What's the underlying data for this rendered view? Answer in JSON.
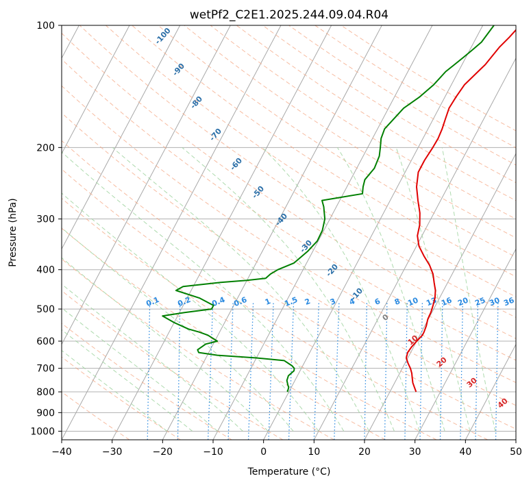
{
  "chart_data": {
    "type": "line",
    "title": "wetPf2_C2E1.2025.244.09.04.R04",
    "xlabel": "Temperature (°C)",
    "ylabel": "Pressure (hPa)",
    "xlim": [
      -40,
      50
    ],
    "ylim": [
      1050,
      100
    ],
    "y_scale": "log",
    "x_ticks": [
      -40,
      -30,
      -20,
      -10,
      0,
      10,
      20,
      30,
      40,
      50
    ],
    "y_ticks": [
      100,
      200,
      300,
      400,
      500,
      600,
      700,
      800,
      900,
      1000
    ],
    "grid": true,
    "background_isolines": {
      "isotherms": "gray solid",
      "dry_adiabats": "salmon dashed",
      "moist_adiabats": "green dashed",
      "mixing_ratio": "blue dotted"
    },
    "colors": {
      "temperature": "#e00000",
      "dewpoint": "#007f00",
      "isotherm": "#a8a8a8",
      "dry_adiabat": "#f4a582",
      "moist_adiabat": "#9fd39f",
      "mixing_ratio": "#2b8ae0",
      "label_blue": "#2b6fa8",
      "label_red": "#d62728",
      "label_gray": "#808080"
    },
    "series": [
      {
        "x": [
          25.2,
          24.4,
          23.6,
          23.0,
          22.4,
          21.6,
          20.6,
          19.7,
          19.4,
          19.6,
          20.0,
          20.5,
          20.5,
          20.3,
          19.9,
          19.8,
          19.5,
          19.1,
          18.4,
          17.3,
          16.2,
          14.6,
          12.5,
          10.5,
          9.1,
          8.4,
          7.2,
          5.5,
          3.8,
          2.6,
          2.6,
          2.9,
          3.0,
          2.8,
          2.4,
          2.0,
          2.2,
          2.6,
          3.9,
          4.6,
          5.0,
          5.6,
          6.5,
          7.4
        ],
        "y": [
          800,
          780,
          760,
          740,
          720,
          700,
          680,
          660,
          640,
          620,
          600,
          580,
          570,
          550,
          530,
          510,
          490,
          470,
          450,
          430,
          410,
          390,
          370,
          350,
          330,
          310,
          290,
          270,
          250,
          230,
          215,
          200,
          190,
          180,
          170,
          160,
          150,
          140,
          130,
          125,
          120,
          113,
          107,
          100
        ]
      },
      {
        "x": [
          -0.3,
          -0.5,
          -0.9,
          -1.6,
          -1.8,
          -1.2,
          -1.4,
          -2.1,
          -4.2,
          -10.0,
          -18.0,
          -22.0,
          -22.5,
          -21.5,
          -19.5,
          -22.0,
          -24.0,
          -26.5,
          -30.0,
          -33.0,
          -29.0,
          -24.0,
          -24.0,
          -27.5,
          -33.0,
          -32.0,
          -25.0,
          -20.0,
          -16.5,
          -16.0,
          -15.0,
          -12.5,
          -11.0,
          -10.2,
          -10.3,
          -11.0,
          -12.5,
          -13.5,
          -6.2,
          -6.8,
          -7.2,
          -6.5,
          -6.8,
          -7.5,
          -8.3,
          -8.6,
          -7.0,
          -5.0,
          -3.5,
          -2.5,
          -1.5,
          -0.5,
          0.5,
          1.5,
          2.2
        ],
        "y": [
          800,
          780,
          770,
          750,
          730,
          710,
          700,
          690,
          670,
          660,
          650,
          640,
          630,
          610,
          600,
          580,
          570,
          560,
          540,
          520,
          510,
          500,
          490,
          470,
          450,
          440,
          430,
          425,
          420,
          410,
          400,
          385,
          360,
          340,
          320,
          300,
          280,
          270,
          260,
          250,
          240,
          225,
          210,
          200,
          190,
          180,
          160,
          150,
          140,
          130,
          125,
          120,
          115,
          110,
          100
        ]
      }
    ],
    "isotherm_labels": [
      "-100",
      "-90",
      "-80",
      "-70",
      "-60",
      "-50",
      "-40",
      "-30",
      "-20",
      "-10"
    ],
    "mixing_ratio_labels": [
      "0.1",
      "0.2",
      "0.4",
      "0.6",
      "1",
      "1.5",
      "2",
      "3",
      "4",
      "6",
      "8",
      "10",
      "13",
      "16",
      "20",
      "25",
      "30",
      "36"
    ],
    "moist_labels": [
      "0",
      "10",
      "20",
      "30",
      "40"
    ]
  }
}
